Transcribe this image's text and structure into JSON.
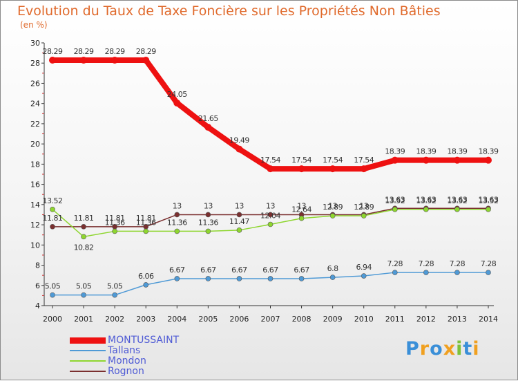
{
  "title": "Evolution du Taux de Taxe Foncière sur les Propriétés Non Bâties",
  "unit": "(en %)",
  "brand": "Proxiti",
  "chart_data": {
    "type": "line",
    "title": "Evolution du Taux de Taxe Foncière sur les Propriétés Non Bâties",
    "ylabel": "(en %)",
    "xlabel": "",
    "ylim": [
      4,
      30
    ],
    "ytick_step": 2,
    "grid": false,
    "legend": "bottom-left",
    "x": [
      "2000",
      "2001",
      "2002",
      "2003",
      "2004",
      "2005",
      "2006",
      "2007",
      "2008",
      "2009",
      "2010",
      "2011",
      "2012",
      "2013",
      "2014"
    ],
    "series": [
      {
        "name": "MONTUSSAINT",
        "color": "#ee1111",
        "values": [
          28.29,
          28.29,
          28.29,
          28.29,
          24.05,
          21.65,
          19.49,
          17.54,
          17.54,
          17.54,
          17.54,
          18.39,
          18.39,
          18.39,
          18.39
        ],
        "labels": [
          "28.29",
          "28.29",
          "28.29",
          "28.29",
          "24.05",
          "21.65",
          "19.49",
          "17.54",
          "17.54",
          "17.54",
          "17.54",
          "18.39",
          "18.39",
          "18.39",
          "18.39"
        ]
      },
      {
        "name": "Tallans",
        "color": "#4f9ad6",
        "values": [
          5.05,
          5.05,
          5.05,
          6.06,
          6.67,
          6.67,
          6.67,
          6.67,
          6.67,
          6.8,
          6.94,
          7.28,
          7.28,
          7.28,
          7.28
        ],
        "labels": [
          "5.05",
          "5.05",
          "5.05",
          "6.06",
          "6.67",
          "6.67",
          "6.67",
          "6.67",
          "6.67",
          "6.8",
          "6.94",
          "7.28",
          "7.28",
          "7.28",
          "7.28"
        ]
      },
      {
        "name": "Mondon",
        "color": "#8ed62f",
        "values": [
          13.52,
          10.82,
          11.36,
          11.36,
          11.36,
          11.36,
          11.47,
          12.04,
          12.64,
          12.89,
          12.89,
          13.52,
          13.52,
          13.52,
          13.52
        ],
        "labels": [
          "13.52",
          "10.82",
          "11.36",
          "11.36",
          "11.36",
          "11.36",
          "11.47",
          "12.04",
          "12.64",
          "12.89",
          "12.89",
          "13.52",
          "13.52",
          "13.52",
          "13.52"
        ]
      },
      {
        "name": "Rognon",
        "color": "#7a2f2f",
        "values": [
          11.81,
          11.81,
          11.81,
          11.81,
          13,
          13,
          13,
          13,
          13,
          13,
          13,
          13.63,
          13.63,
          13.63,
          13.63
        ],
        "labels": [
          "11.81",
          "11.81",
          "11.81",
          "11.81",
          "13",
          "13",
          "13",
          "13",
          "13",
          "13",
          "13",
          "13.63",
          "13.63",
          "13.63",
          "13.63"
        ]
      }
    ]
  }
}
